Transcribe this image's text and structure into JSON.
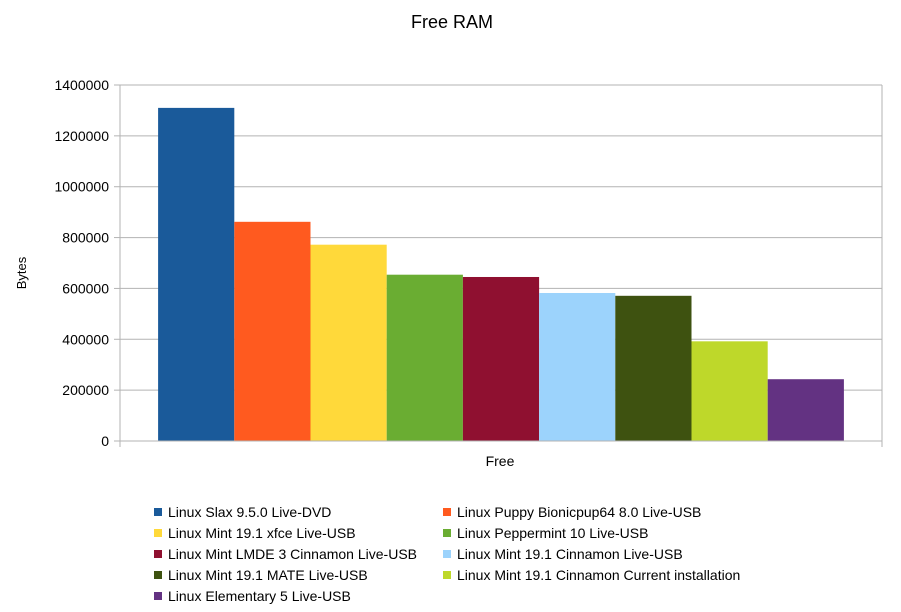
{
  "chart_data": {
    "type": "bar",
    "title": "Free RAM",
    "xlabel": "Free",
    "ylabel": "Bytes",
    "ylim": [
      0,
      1400000
    ],
    "yticks": [
      "0",
      "200000",
      "400000",
      "600000",
      "800000",
      "1000000",
      "1200000",
      "1400000"
    ],
    "grid": true,
    "legend_position": "bottom",
    "categories": [
      "Free"
    ],
    "series": [
      {
        "name": "Linux Slax 9.5.0 Live-DVD",
        "color": "#1a5a9a",
        "values": [
          1310000
        ]
      },
      {
        "name": "Linux Puppy Bionicpup64 8.0 Live-USB",
        "color": "#ff5a1f",
        "values": [
          862000
        ]
      },
      {
        "name": "Linux Mint 19.1 xfce Live-USB",
        "color": "#ffd93a",
        "values": [
          772000
        ]
      },
      {
        "name": "Linux Peppermint 10 Live-USB",
        "color": "#6aad32",
        "values": [
          654000
        ]
      },
      {
        "name": "Linux Mint LMDE 3 Cinnamon Live-USB",
        "color": "#8f1030",
        "values": [
          645000
        ]
      },
      {
        "name": "Linux Mint 19.1 Cinnamon Live-USB",
        "color": "#9cd3fc",
        "values": [
          582000
        ]
      },
      {
        "name": "Linux Mint 19.1 MATE Live-USB",
        "color": "#3e5210",
        "values": [
          571000
        ]
      },
      {
        "name": "Linux Mint 19.1 Cinnamon Current installation",
        "color": "#bed82a",
        "values": [
          392000
        ]
      },
      {
        "name": "Linux Elementary 5 Live-USB",
        "color": "#633282",
        "values": [
          243000
        ]
      }
    ]
  }
}
